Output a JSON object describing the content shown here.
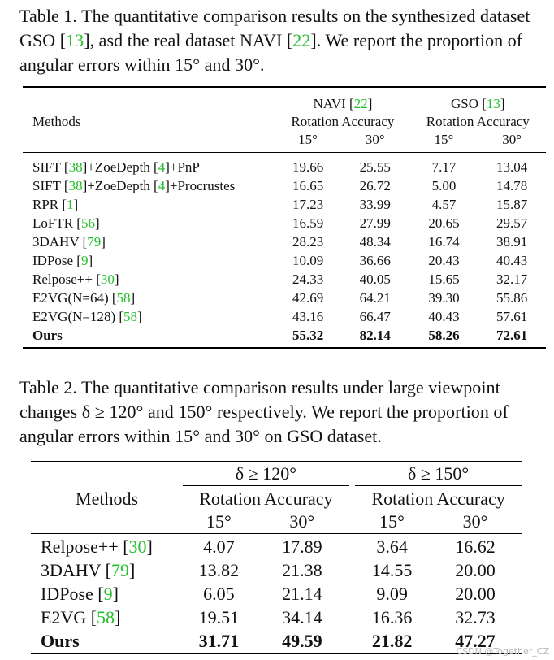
{
  "table1": {
    "caption": [
      {
        "t": "Table 1.  The quantitative comparison results on the synthesized dataset GSO ["
      },
      {
        "t": "13",
        "cite": true
      },
      {
        "t": "], asd the real dataset NAVI ["
      },
      {
        "t": "22",
        "cite": true
      },
      {
        "t": "].  We report the proportion of angular errors within 15° and 30°."
      }
    ],
    "header": {
      "methods": "Methods",
      "navi": [
        {
          "t": "NAVI ["
        },
        {
          "t": "22",
          "cite": true
        },
        {
          "t": "]"
        }
      ],
      "gso": [
        {
          "t": "GSO ["
        },
        {
          "t": "13",
          "cite": true
        },
        {
          "t": "]"
        }
      ],
      "rotation_accuracy": "Rotation Accuracy",
      "deg15": "15°",
      "deg30": "30°"
    },
    "rows": [
      {
        "method": [
          {
            "t": "SIFT ["
          },
          {
            "t": "38",
            "cite": true
          },
          {
            "t": "]+ZoeDepth ["
          },
          {
            "t": "4",
            "cite": true
          },
          {
            "t": "]+PnP"
          }
        ],
        "values": [
          "19.66",
          "25.55",
          "7.17",
          "13.04"
        ]
      },
      {
        "method": [
          {
            "t": "SIFT ["
          },
          {
            "t": "38",
            "cite": true
          },
          {
            "t": "]+ZoeDepth ["
          },
          {
            "t": "4",
            "cite": true
          },
          {
            "t": "]+Procrustes"
          }
        ],
        "values": [
          "16.65",
          "26.72",
          "5.00",
          "14.78"
        ]
      },
      {
        "method": [
          {
            "t": "RPR ["
          },
          {
            "t": "1",
            "cite": true
          },
          {
            "t": "]"
          }
        ],
        "values": [
          "17.23",
          "33.99",
          "4.57",
          "15.87"
        ]
      },
      {
        "method": [
          {
            "t": "LoFTR ["
          },
          {
            "t": "56",
            "cite": true
          },
          {
            "t": "]"
          }
        ],
        "values": [
          "16.59",
          "27.99",
          "20.65",
          "29.57"
        ]
      },
      {
        "method": [
          {
            "t": "3DAHV ["
          },
          {
            "t": "79",
            "cite": true
          },
          {
            "t": "]"
          }
        ],
        "values": [
          "28.23",
          "48.34",
          "16.74",
          "38.91"
        ]
      },
      {
        "method": [
          {
            "t": "IDPose ["
          },
          {
            "t": "9",
            "cite": true
          },
          {
            "t": "]"
          }
        ],
        "values": [
          "10.09",
          "36.66",
          "20.43",
          "40.43"
        ]
      },
      {
        "method": [
          {
            "t": "Relpose++ ["
          },
          {
            "t": "30",
            "cite": true
          },
          {
            "t": "]"
          }
        ],
        "values": [
          "24.33",
          "40.05",
          "15.65",
          "32.17"
        ]
      },
      {
        "method": [
          {
            "t": "E2VG(N=64) ["
          },
          {
            "t": "58",
            "cite": true
          },
          {
            "t": "]"
          }
        ],
        "values": [
          "42.69",
          "64.21",
          "39.30",
          "55.86"
        ]
      },
      {
        "method": [
          {
            "t": "E2VG(N=128) ["
          },
          {
            "t": "58",
            "cite": true
          },
          {
            "t": "]"
          }
        ],
        "values": [
          "43.16",
          "66.47",
          "40.43",
          "57.61"
        ]
      },
      {
        "method": [
          {
            "t": "Ours"
          }
        ],
        "values": [
          "55.32",
          "82.14",
          "58.26",
          "72.61"
        ],
        "bold": true
      }
    ]
  },
  "table2": {
    "caption": [
      {
        "t": "Table 2. The quantitative comparison results under large viewpoint changes δ ≥ 120° and 150° respectively. We report the proportion of angular errors within 15° and 30° on GSO dataset."
      }
    ],
    "header": {
      "methods": "Methods",
      "group1": "δ ≥ 120°",
      "group2": "δ ≥ 150°",
      "rotation_accuracy": "Rotation Accuracy",
      "deg15": "15°",
      "deg30": "30°"
    },
    "rows": [
      {
        "method": [
          {
            "t": "Relpose++ ["
          },
          {
            "t": "30",
            "cite": true
          },
          {
            "t": "]"
          }
        ],
        "values": [
          "4.07",
          "17.89",
          "3.64",
          "16.62"
        ]
      },
      {
        "method": [
          {
            "t": "3DAHV ["
          },
          {
            "t": "79",
            "cite": true
          },
          {
            "t": "]"
          }
        ],
        "values": [
          "13.82",
          "21.38",
          "14.55",
          "20.00"
        ]
      },
      {
        "method": [
          {
            "t": "IDPose ["
          },
          {
            "t": "9",
            "cite": true
          },
          {
            "t": "]"
          }
        ],
        "values": [
          "6.05",
          "21.14",
          "9.09",
          "20.00"
        ]
      },
      {
        "method": [
          {
            "t": "E2VG ["
          },
          {
            "t": "58",
            "cite": true
          },
          {
            "t": "]"
          }
        ],
        "values": [
          "19.51",
          "34.14",
          "16.36",
          "32.73"
        ]
      },
      {
        "method": [
          {
            "t": "Ours"
          }
        ],
        "values": [
          "31.71",
          "49.59",
          "21.82",
          "47.27"
        ],
        "bold": true
      }
    ]
  },
  "watermark": "CSDN @Together_CZ",
  "colors": {
    "citation": "#22c02a",
    "text": "#111111"
  }
}
